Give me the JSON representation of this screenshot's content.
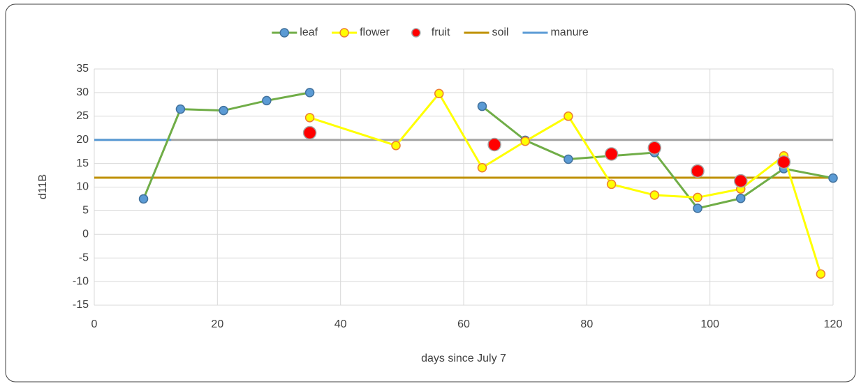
{
  "chart_data": {
    "type": "line",
    "xlabel": "days since July 7",
    "ylabel": "d11B",
    "xlim": [
      0,
      120
    ],
    "ylim": [
      -15,
      35
    ],
    "xticks": [
      0,
      20,
      40,
      60,
      80,
      100,
      120
    ],
    "yticks": [
      -15,
      -10,
      -5,
      0,
      5,
      10,
      15,
      20,
      25,
      30,
      35
    ],
    "grid": true,
    "legend": "top",
    "series": [
      {
        "name": "leaf",
        "color": "#70ad47",
        "marker_fill": "#5b9bd5",
        "style": "line-marker",
        "x": [
          8,
          14,
          21,
          28,
          35,
          49,
          63,
          70,
          77,
          84,
          91,
          98,
          105,
          112,
          120
        ],
        "values": [
          7.5,
          26.5,
          26.2,
          28.3,
          30,
          null,
          27.1,
          19.9,
          15.9,
          16.6,
          17.3,
          5.5,
          7.6,
          13.9,
          11.9
        ]
      },
      {
        "name": "flower",
        "color": "#ffff00",
        "marker_fill": "#ffff00",
        "marker_edge": "#ed7d31",
        "style": "line-marker",
        "x": [
          35,
          49,
          56,
          63,
          70,
          77,
          84,
          91,
          98,
          105,
          112,
          118
        ],
        "values": [
          24.7,
          18.8,
          29.8,
          14.1,
          19.7,
          25,
          10.6,
          8.3,
          7.8,
          9.6,
          16.6,
          -8.4
        ]
      },
      {
        "name": "fruit",
        "color": "#ff0000",
        "marker_edge": "#a5a5a5",
        "style": "marker",
        "x": [
          35,
          65,
          84,
          91,
          98,
          105,
          112
        ],
        "values": [
          21.5,
          19,
          17,
          18.3,
          13.4,
          11.3,
          15.3
        ]
      },
      {
        "name": "soil",
        "color": "#bf9000",
        "style": "line",
        "x": [
          0,
          120
        ],
        "values": [
          12,
          12
        ]
      },
      {
        "name": "manure",
        "color": "#5b9bd5",
        "style": "line",
        "x": [
          0,
          12.5
        ],
        "values": [
          20,
          20
        ]
      },
      {
        "color": "#a5a5a5",
        "style": "line",
        "x": [
          0,
          120
        ],
        "values": [
          20,
          20
        ]
      }
    ]
  }
}
